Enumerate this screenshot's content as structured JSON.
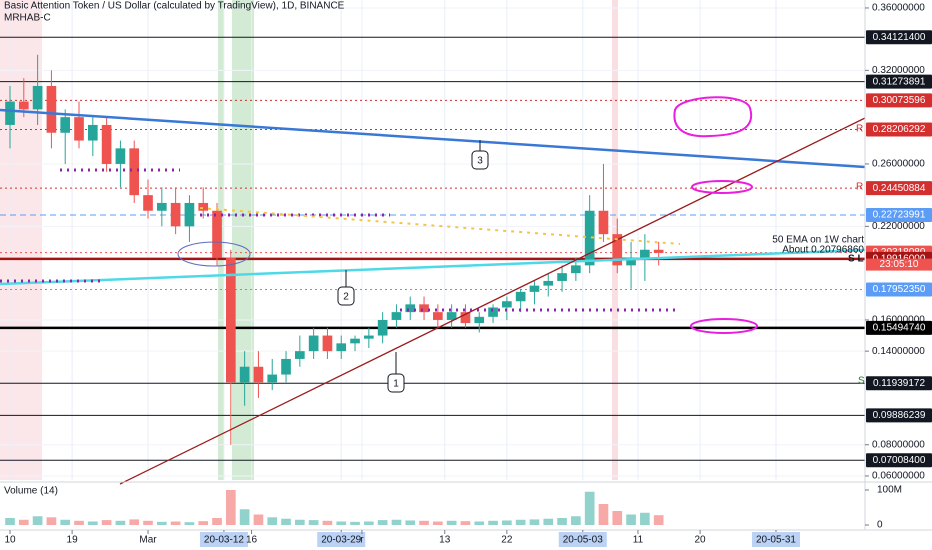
{
  "chart_data": {
    "type": "candlestick",
    "title": "Basic Attention Token / US Dollar (calculated by TradingView), 1D, BINANCE",
    "indicator": "MRHAB-C",
    "x": [
      0,
      2,
      4,
      6,
      8,
      10,
      12,
      14,
      16,
      18,
      20,
      22,
      24,
      26,
      28,
      30,
      32,
      34,
      36,
      38,
      40,
      42,
      44,
      46,
      48,
      50,
      52,
      54,
      56,
      58,
      60,
      62,
      64,
      66,
      68,
      70,
      72,
      74,
      76,
      78,
      80,
      82,
      84,
      86,
      88,
      90,
      92,
      94
    ],
    "open": [
      0.285,
      0.3,
      0.295,
      0.31,
      0.28,
      0.29,
      0.275,
      0.285,
      0.26,
      0.27,
      0.24,
      0.23,
      0.235,
      0.22,
      0.235,
      0.23,
      0.2,
      0.12,
      0.13,
      0.12,
      0.125,
      0.135,
      0.14,
      0.15,
      0.14,
      0.145,
      0.148,
      0.15,
      0.16,
      0.165,
      0.17,
      0.165,
      0.16,
      0.165,
      0.158,
      0.162,
      0.168,
      0.172,
      0.178,
      0.182,
      0.185,
      0.19,
      0.195,
      0.23,
      0.215,
      0.195,
      0.2,
      0.205
    ],
    "high": [
      0.31,
      0.315,
      0.33,
      0.32,
      0.295,
      0.3,
      0.29,
      0.29,
      0.275,
      0.275,
      0.25,
      0.245,
      0.245,
      0.24,
      0.245,
      0.235,
      0.205,
      0.14,
      0.14,
      0.135,
      0.14,
      0.15,
      0.155,
      0.155,
      0.15,
      0.15,
      0.155,
      0.165,
      0.17,
      0.175,
      0.175,
      0.17,
      0.17,
      0.17,
      0.165,
      0.17,
      0.175,
      0.18,
      0.185,
      0.19,
      0.195,
      0.2,
      0.24,
      0.26,
      0.225,
      0.21,
      0.215,
      0.21
    ],
    "low": [
      0.27,
      0.29,
      0.285,
      0.27,
      0.26,
      0.27,
      0.265,
      0.255,
      0.245,
      0.235,
      0.225,
      0.22,
      0.215,
      0.21,
      0.225,
      0.195,
      0.08,
      0.105,
      0.11,
      0.115,
      0.12,
      0.13,
      0.135,
      0.135,
      0.135,
      0.14,
      0.142,
      0.145,
      0.155,
      0.16,
      0.16,
      0.155,
      0.155,
      0.155,
      0.152,
      0.158,
      0.16,
      0.165,
      0.17,
      0.175,
      0.178,
      0.185,
      0.19,
      0.21,
      0.19,
      0.18,
      0.185,
      0.195
    ],
    "close": [
      0.3,
      0.295,
      0.31,
      0.28,
      0.29,
      0.275,
      0.285,
      0.26,
      0.27,
      0.24,
      0.23,
      0.235,
      0.22,
      0.235,
      0.23,
      0.2,
      0.12,
      0.13,
      0.12,
      0.125,
      0.135,
      0.14,
      0.15,
      0.14,
      0.145,
      0.148,
      0.15,
      0.16,
      0.165,
      0.17,
      0.165,
      0.16,
      0.165,
      0.158,
      0.162,
      0.168,
      0.172,
      0.178,
      0.182,
      0.185,
      0.19,
      0.195,
      0.23,
      0.215,
      0.195,
      0.2,
      0.205,
      0.203
    ],
    "volume": [
      20000000,
      15000000,
      25000000,
      22000000,
      15000000,
      12000000,
      10000000,
      14000000,
      12000000,
      16000000,
      12000000,
      9000000,
      10000000,
      8000000,
      11000000,
      20000000,
      100000000,
      45000000,
      30000000,
      22000000,
      18000000,
      15000000,
      14000000,
      12000000,
      10000000,
      9000000,
      10000000,
      14000000,
      15000000,
      13000000,
      12000000,
      10000000,
      12000000,
      11000000,
      10000000,
      12000000,
      13000000,
      15000000,
      16000000,
      18000000,
      20000000,
      25000000,
      95000000,
      60000000,
      40000000,
      30000000,
      35000000,
      28000000
    ],
    "up_color": "#26a69a",
    "down_color": "#ef5350",
    "xlim": [
      -1.45,
      123.9
    ],
    "xticks": [
      {
        "value": 0,
        "label": "10"
      },
      {
        "value": 9,
        "label": "19"
      },
      {
        "value": 20,
        "label": "Mar"
      },
      {
        "value": 31,
        "label": "20-03-12",
        "boxed": true
      },
      {
        "value": 35,
        "label": "16"
      },
      {
        "value": 48,
        "label": "20-03-29",
        "boxed": true
      },
      {
        "value": 51,
        "label": "r"
      },
      {
        "value": 63,
        "label": "13"
      },
      {
        "value": 72,
        "label": "22"
      },
      {
        "value": 83,
        "label": "20-05-03",
        "boxed": true
      },
      {
        "value": 91,
        "label": "11"
      },
      {
        "value": 100,
        "label": "20"
      },
      {
        "value": 111,
        "label": "20-05-31",
        "boxed": true
      }
    ],
    "ylim": [
      0.0574,
      0.3651
    ],
    "yticks": [
      {
        "value": 0.36,
        "label": "0.36000000"
      },
      {
        "value": 0.32,
        "label": "0.32000000"
      },
      {
        "value": 0.26,
        "label": "0.26000000"
      },
      {
        "value": 0.22,
        "label": "0.22000000"
      },
      {
        "value": 0.16,
        "label": "0.16000000"
      },
      {
        "value": 0.14,
        "label": "0.14000000"
      },
      {
        "value": 0.08,
        "label": "0.08000000"
      },
      {
        "value": 0.06,
        "label": "0.06000000"
      }
    ],
    "levels": [
      {
        "value": 0.341214,
        "label": "0.34121400",
        "color": "#131722",
        "style": "solid"
      },
      {
        "value": 0.31273891,
        "label": "0.31273891",
        "color": "#131722",
        "style": "solid"
      },
      {
        "value": 0.30073596,
        "label": "0.30073596",
        "color": "#d32f2f",
        "style": "dotted"
      },
      {
        "value": 0.28206292,
        "label": "0.28206292",
        "color": "#d32f2f",
        "style": "dotted"
      },
      {
        "value": 0.24450884,
        "label": "0.24450884",
        "color": "#d32f2f",
        "style": "dotted"
      },
      {
        "value": 0.22723991,
        "label": "0.22723991",
        "color": "#5b9cf6",
        "style": "dashed"
      },
      {
        "value": 0.2031808,
        "label": "0.20318080",
        "color": "#ef5350",
        "style": "dotted"
      },
      {
        "value": 0.19916,
        "label": "0.19916000",
        "color": "#a31515",
        "style": "thick"
      },
      {
        "value": 0.1795235,
        "label": "0.17952350",
        "color": "#5b9cf6",
        "style": "dotted"
      },
      {
        "value": 0.1549474,
        "label": "0.15494740",
        "color": "#000000",
        "style": "thick"
      },
      {
        "value": 0.11939172,
        "label": "0.11939172",
        "color": "#131722",
        "style": "solid"
      },
      {
        "value": 0.09886239,
        "label": "0.09886239",
        "color": "#131722",
        "style": "solid"
      },
      {
        "value": 0.070084,
        "label": "0.07008400",
        "color": "#131722",
        "style": "solid"
      }
    ],
    "countdown": "23:05:10",
    "volume_title": "Volume (14)",
    "vlim": [
      0,
      110000000
    ],
    "vticks": [
      {
        "value": 100000000,
        "label": "100M"
      },
      0
    ],
    "annotations": {
      "callout_1": "1",
      "callout_2": "2",
      "callout_3": "3",
      "ema_note": "50 EMA on 1W chart",
      "ema_value": "About 0.20796860",
      "sl": "S L",
      "r1": "R",
      "r2": "R",
      "s": "S"
    },
    "grid": true
  }
}
